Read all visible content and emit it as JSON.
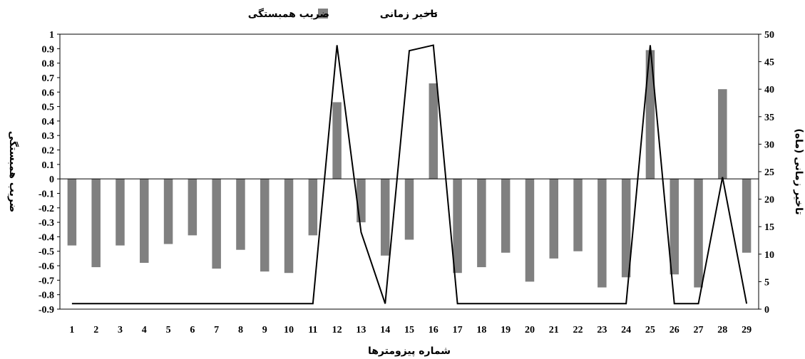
{
  "chart_data": {
    "type": "bar",
    "categories": [
      "1",
      "2",
      "3",
      "4",
      "5",
      "6",
      "7",
      "8",
      "9",
      "10",
      "11",
      "12",
      "13",
      "14",
      "15",
      "16",
      "17",
      "18",
      "19",
      "20",
      "21",
      "22",
      "23",
      "24",
      "25",
      "26",
      "27",
      "28",
      "29"
    ],
    "series": [
      {
        "name": "ضریب همبستگی",
        "type": "bar",
        "axis": "left",
        "color": "#808080",
        "values": [
          -0.46,
          -0.61,
          -0.46,
          -0.58,
          -0.45,
          -0.39,
          -0.62,
          -0.49,
          -0.64,
          -0.65,
          -0.39,
          0.53,
          -0.3,
          -0.53,
          -0.42,
          0.66,
          -0.65,
          -0.61,
          -0.51,
          -0.71,
          -0.55,
          -0.5,
          -0.75,
          -0.68,
          0.89,
          -0.66,
          -0.75,
          0.62,
          -0.51
        ]
      },
      {
        "name": "تاخیر زمانی",
        "type": "line",
        "axis": "right",
        "color": "#000000",
        "values": [
          1,
          1,
          1,
          1,
          1,
          1,
          1,
          1,
          1,
          1,
          1,
          48,
          14,
          1,
          47,
          48,
          1,
          1,
          1,
          1,
          1,
          1,
          1,
          1,
          48,
          1,
          1,
          24,
          1
        ]
      }
    ],
    "xlabel": "شماره پیزومترها",
    "ylabel": "ضریب همبستگی",
    "y2label": "تاخیر زمانی  (ماه)",
    "ylim": [
      -0.9,
      1
    ],
    "y2lim": [
      0,
      50
    ],
    "yticks": [
      "1",
      "0.9",
      "0.8",
      "0.7",
      "0.6",
      "0.5",
      "0.4",
      "0.3",
      "0.2",
      "0.1",
      "0",
      "-0.1",
      "-0.2",
      "-0.3",
      "-0.4",
      "-0.5",
      "-0.6",
      "-0.7",
      "-0.8",
      "-0.9"
    ],
    "y2ticks": [
      "50",
      "45",
      "40",
      "35",
      "30",
      "25",
      "20",
      "15",
      "10",
      "5",
      "0"
    ],
    "grid": false,
    "legend_position": "top-center"
  }
}
